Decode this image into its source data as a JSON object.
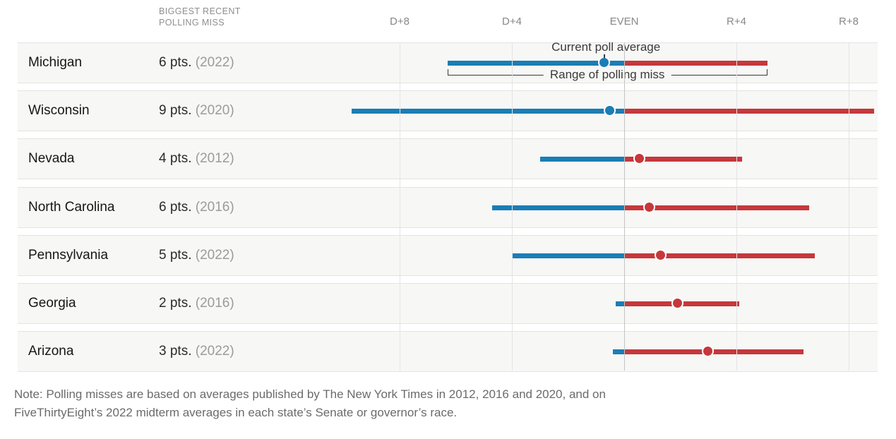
{
  "header": {
    "column_label_line1": "BIGGEST RECENT",
    "column_label_line2": "POLLING MISS"
  },
  "chart_data": {
    "type": "scatter",
    "variant": "range-dot (dumbbell), one row per state",
    "x_axis": {
      "ticks": [
        {
          "label": "D+8",
          "value": -8
        },
        {
          "label": "D+4",
          "value": -4
        },
        {
          "label": "EVEN",
          "value": 0
        },
        {
          "label": "R+4",
          "value": 4
        },
        {
          "label": "R+8",
          "value": 8
        }
      ],
      "units": "percentage points of partisan lean (D left, R right)",
      "approx_range": [
        -10.8,
        9.0
      ]
    },
    "colors": {
      "dem_blue": "#1b7db6",
      "rep_red": "#c5383c",
      "even_line": "#c4c4c4"
    },
    "annotations": {
      "poll_average_label": "Current poll average",
      "range_label": "Range of polling miss"
    },
    "rows": [
      {
        "state": "Michigan",
        "miss": "6 pts.",
        "year": "(2022)",
        "poll_avg_pts": -0.7,
        "range_pts": [
          -6.3,
          5.1
        ]
      },
      {
        "state": "Wisconsin",
        "miss": "9 pts.",
        "year": "(2020)",
        "poll_avg_pts": -0.5,
        "range_pts": [
          -9.7,
          8.9
        ]
      },
      {
        "state": "Nevada",
        "miss": "4 pts.",
        "year": "(2012)",
        "poll_avg_pts": 0.55,
        "range_pts": [
          -3.0,
          4.2
        ]
      },
      {
        "state": "North Carolina",
        "miss": "6 pts.",
        "year": "(2016)",
        "poll_avg_pts": 0.9,
        "range_pts": [
          -4.7,
          6.6
        ]
      },
      {
        "state": "Pennsylvania",
        "miss": "5 pts.",
        "year": "(2022)",
        "poll_avg_pts": 1.3,
        "range_pts": [
          -4.0,
          6.8
        ]
      },
      {
        "state": "Georgia",
        "miss": "2 pts.",
        "year": "(2016)",
        "poll_avg_pts": 1.9,
        "range_pts": [
          -0.3,
          4.1
        ]
      },
      {
        "state": "Arizona",
        "miss": "3 pts.",
        "year": "(2022)",
        "poll_avg_pts": 3.0,
        "range_pts": [
          -0.4,
          6.4
        ]
      }
    ]
  },
  "note": {
    "line1": "Note: Polling misses are based on averages published by The New York Times in 2012, 2016 and 2020, and on",
    "line2": "FiveThirtyEight’s 2022 midterm averages in each state’s Senate or governor’s race."
  }
}
